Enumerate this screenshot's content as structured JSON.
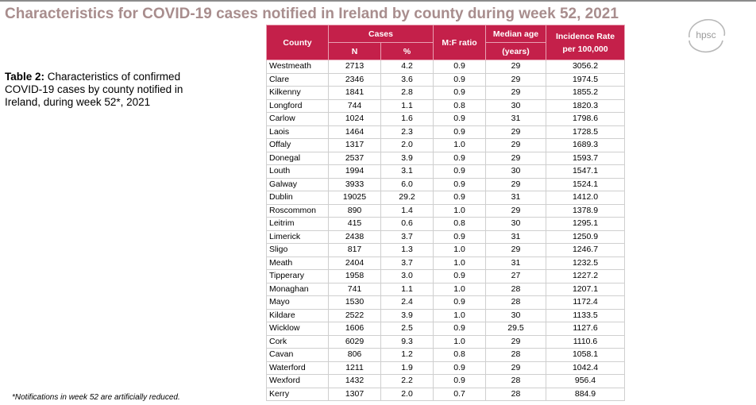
{
  "title": "Characteristics for COVID-19 cases notified in Ireland by county during week 52, 2021",
  "logo_text": "hpsc",
  "caption": {
    "label": "Table 2:",
    "text": " Characteristics of confirmed COVID-19 cases by county notified in Ireland, during week 52*, 2021"
  },
  "footnote": "*Notifications in week 52 are artificially reduced.",
  "colors": {
    "header": "#c4204a",
    "title": "#a88d8d"
  },
  "table": {
    "headers": {
      "county": "County",
      "cases": "Cases",
      "n": "N",
      "pct": "%",
      "mf": "M:F ratio",
      "median_1": "Median age",
      "median_2": "(years)",
      "incidence_1": "Incidence Rate",
      "incidence_2": "per 100,000"
    },
    "rows": [
      [
        "Westmeath",
        "2713",
        "4.2",
        "0.9",
        "29",
        "3056.2"
      ],
      [
        "Clare",
        "2346",
        "3.6",
        "0.9",
        "29",
        "1974.5"
      ],
      [
        "Kilkenny",
        "1841",
        "2.8",
        "0.9",
        "29",
        "1855.2"
      ],
      [
        "Longford",
        "744",
        "1.1",
        "0.8",
        "30",
        "1820.3"
      ],
      [
        "Carlow",
        "1024",
        "1.6",
        "0.9",
        "31",
        "1798.6"
      ],
      [
        "Laois",
        "1464",
        "2.3",
        "0.9",
        "29",
        "1728.5"
      ],
      [
        "Offaly",
        "1317",
        "2.0",
        "1.0",
        "29",
        "1689.3"
      ],
      [
        "Donegal",
        "2537",
        "3.9",
        "0.9",
        "29",
        "1593.7"
      ],
      [
        "Louth",
        "1994",
        "3.1",
        "0.9",
        "30",
        "1547.1"
      ],
      [
        "Galway",
        "3933",
        "6.0",
        "0.9",
        "29",
        "1524.1"
      ],
      [
        "Dublin",
        "19025",
        "29.2",
        "0.9",
        "31",
        "1412.0"
      ],
      [
        "Roscommon",
        "890",
        "1.4",
        "1.0",
        "29",
        "1378.9"
      ],
      [
        "Leitrim",
        "415",
        "0.6",
        "0.8",
        "30",
        "1295.1"
      ],
      [
        "Limerick",
        "2438",
        "3.7",
        "0.9",
        "31",
        "1250.9"
      ],
      [
        "Sligo",
        "817",
        "1.3",
        "1.0",
        "29",
        "1246.7"
      ],
      [
        "Meath",
        "2404",
        "3.7",
        "1.0",
        "31",
        "1232.5"
      ],
      [
        "Tipperary",
        "1958",
        "3.0",
        "0.9",
        "27",
        "1227.2"
      ],
      [
        "Monaghan",
        "741",
        "1.1",
        "1.0",
        "28",
        "1207.1"
      ],
      [
        "Mayo",
        "1530",
        "2.4",
        "0.9",
        "28",
        "1172.4"
      ],
      [
        "Kildare",
        "2522",
        "3.9",
        "1.0",
        "30",
        "1133.5"
      ],
      [
        "Wicklow",
        "1606",
        "2.5",
        "0.9",
        "29.5",
        "1127.6"
      ],
      [
        "Cork",
        "6029",
        "9.3",
        "1.0",
        "29",
        "1110.6"
      ],
      [
        "Cavan",
        "806",
        "1.2",
        "0.8",
        "28",
        "1058.1"
      ],
      [
        "Waterford",
        "1211",
        "1.9",
        "0.9",
        "29",
        "1042.4"
      ],
      [
        "Wexford",
        "1432",
        "2.2",
        "0.9",
        "28",
        "956.4"
      ],
      [
        "Kerry",
        "1307",
        "2.0",
        "0.7",
        "28",
        "884.9"
      ]
    ]
  }
}
